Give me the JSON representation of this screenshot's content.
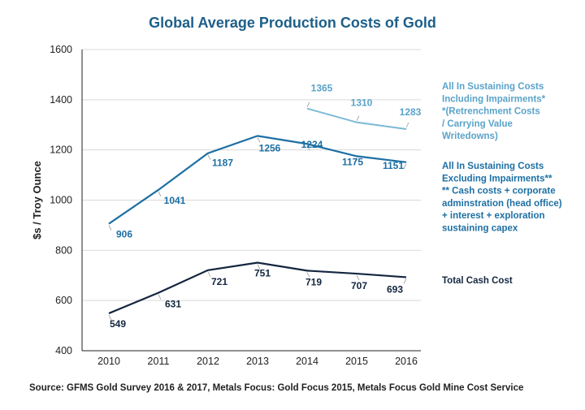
{
  "chart_data": {
    "type": "line",
    "title": "Global Average Production Costs of Gold",
    "ylabel": "$s / Troy Ounce",
    "xlabel": "",
    "categories": [
      "2010",
      "2011",
      "2012",
      "2013",
      "2014",
      "2015",
      "2016"
    ],
    "ylim": [
      400,
      1600
    ],
    "yticks": [
      400,
      600,
      800,
      1000,
      1200,
      1400,
      1600
    ],
    "grid": "horizontal",
    "series": [
      {
        "key": "aisc_incl",
        "name_lines": [
          "All In Sustaining Costs",
          "Including Impairments*",
          "*(Retrenchment Costs",
          "/ Carrying Value",
          "Writedowns)"
        ],
        "values": [
          null,
          null,
          null,
          null,
          1365,
          1310,
          1283
        ],
        "color": "#7cb9d6"
      },
      {
        "key": "aisc_excl",
        "name_lines": [
          "All In Sustaining Costs",
          "Excluding Impairments**",
          "** Cash costs + corporate",
          "adminstration (head office)",
          " + interest + exploration",
          "sustaining capex"
        ],
        "values": [
          906,
          1041,
          1187,
          1256,
          1224,
          1175,
          1151
        ],
        "color": "#1d6fa3"
      },
      {
        "key": "cash_cost",
        "name_lines": [
          "Total Cash Cost"
        ],
        "values": [
          549,
          631,
          721,
          751,
          719,
          707,
          693
        ],
        "color": "#13263f"
      }
    ],
    "source": "Source: GFMS Gold Survey 2016 & 2017, Metals Focus: Gold Focus 2015, Metals Focus Gold Mine Cost Service"
  },
  "colors": {
    "title": "#1d5f8a",
    "label_excl_text": "#1d6fa3",
    "label_incl_text": "#5aa3c9",
    "label_cash_text": "#13263f",
    "axis": "#222222",
    "grid": "#d9d9d9"
  }
}
